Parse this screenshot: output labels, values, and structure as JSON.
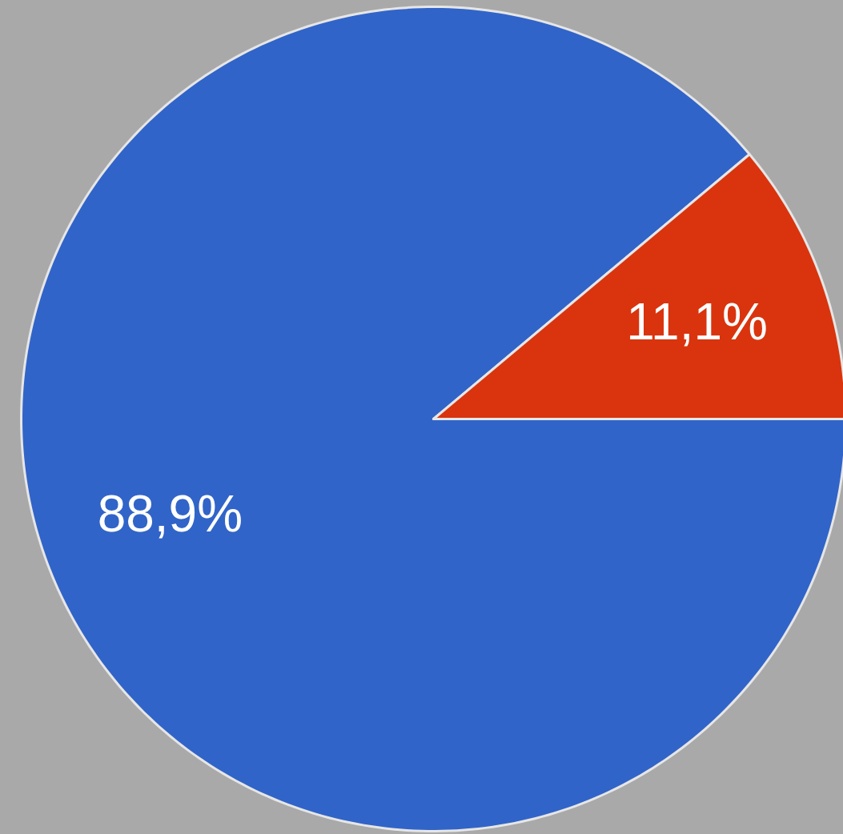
{
  "chart_data": {
    "type": "pie",
    "values": [
      88.9,
      11.1
    ],
    "value_labels": [
      "88,9%",
      "11,1%"
    ],
    "colors": [
      "#3164c8",
      "#d9340e"
    ],
    "data_labels": true
  }
}
